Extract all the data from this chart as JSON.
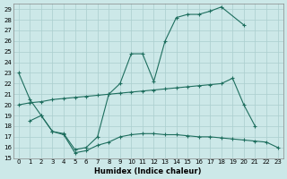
{
  "xlabel": "Humidex (Indice chaleur)",
  "bg_color": "#cce8e8",
  "grid_color": "#aacece",
  "line_color": "#1e6e5e",
  "xlim": [
    -0.5,
    23.5
  ],
  "ylim": [
    15,
    29.5
  ],
  "yticks": [
    15,
    16,
    17,
    18,
    19,
    20,
    21,
    22,
    23,
    24,
    25,
    26,
    27,
    28,
    29
  ],
  "xticks": [
    0,
    1,
    2,
    3,
    4,
    5,
    6,
    7,
    8,
    9,
    10,
    11,
    12,
    13,
    14,
    15,
    16,
    17,
    18,
    19,
    20,
    21,
    22,
    23
  ],
  "series": [
    {
      "x": [
        0,
        1,
        2,
        3,
        4,
        5,
        6,
        7,
        8,
        9,
        10,
        11,
        12,
        13,
        14,
        15,
        16,
        17,
        18,
        20
      ],
      "y": [
        23,
        20.5,
        19,
        17.5,
        17.3,
        15.8,
        16.0,
        17.0,
        21.0,
        22.0,
        24.8,
        24.8,
        22.2,
        26.0,
        28.2,
        28.5,
        28.5,
        28.8,
        29.2,
        27.5
      ]
    },
    {
      "x": [
        0,
        1,
        2,
        3,
        4,
        5,
        6,
        7,
        8,
        9,
        10,
        11,
        12,
        13,
        14,
        15,
        16,
        17,
        18,
        19,
        20,
        21
      ],
      "y": [
        20.0,
        20.2,
        20.3,
        20.5,
        20.6,
        20.7,
        20.8,
        20.9,
        21.0,
        21.1,
        21.2,
        21.3,
        21.4,
        21.5,
        21.6,
        21.7,
        21.8,
        21.9,
        22.0,
        22.5,
        20.0,
        18.0
      ]
    },
    {
      "x": [
        1,
        2,
        3,
        4,
        5,
        6,
        7,
        8,
        9,
        10,
        11,
        12,
        13,
        14,
        15,
        16,
        17,
        18,
        19,
        20,
        21,
        22,
        23
      ],
      "y": [
        18.5,
        19.0,
        17.5,
        17.2,
        15.5,
        15.7,
        16.2,
        16.5,
        17.0,
        17.2,
        17.3,
        17.3,
        17.2,
        17.2,
        17.1,
        17.0,
        17.0,
        16.9,
        16.8,
        16.7,
        16.6,
        16.5,
        16.0
      ]
    }
  ]
}
